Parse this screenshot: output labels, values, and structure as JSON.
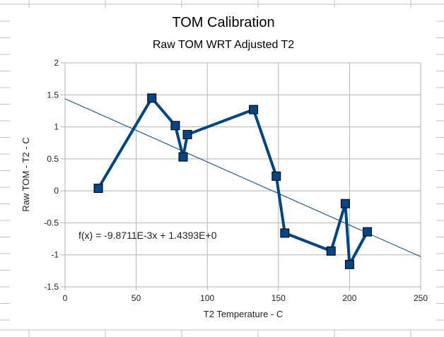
{
  "chart_data": {
    "type": "line",
    "title": "TOM Calibration",
    "subtitle": "Raw TOM WRT Adjusted T2",
    "xlabel": "T2 Temperature - C",
    "ylabel": "Raw TOM - T2 - C",
    "xlim": [
      0,
      250
    ],
    "ylim": [
      -1.5,
      2
    ],
    "xticks": [
      0,
      50,
      100,
      150,
      200,
      250
    ],
    "yticks": [
      2,
      1.5,
      1,
      0.5,
      0,
      -0.5,
      -1,
      -1.5
    ],
    "xtick_labels": [
      "0",
      "50",
      "100",
      "150",
      "200",
      "250"
    ],
    "ytick_labels": [
      "2",
      "1.5",
      "1",
      "0.5",
      "0",
      "-0.5",
      "-1",
      "-1.5"
    ],
    "grid": true,
    "legend": "none",
    "series": [
      {
        "name": "Raw TOM - T2",
        "color": "#004586",
        "marker": "square",
        "x": [
          23.4,
          61,
          77.5,
          83,
          86,
          132.5,
          148.5,
          154.5,
          187,
          197,
          200,
          212.5
        ],
        "y": [
          0.04,
          1.45,
          1.02,
          0.53,
          0.88,
          1.27,
          0.23,
          -0.66,
          -0.94,
          -0.2,
          -1.15,
          -0.64
        ]
      }
    ],
    "trendline": {
      "slope": -0.0098711,
      "intercept": 1.4393,
      "color": "#004586",
      "equation_label": "f(x) = -9.8711E-3x + 1.4393E+0"
    }
  }
}
